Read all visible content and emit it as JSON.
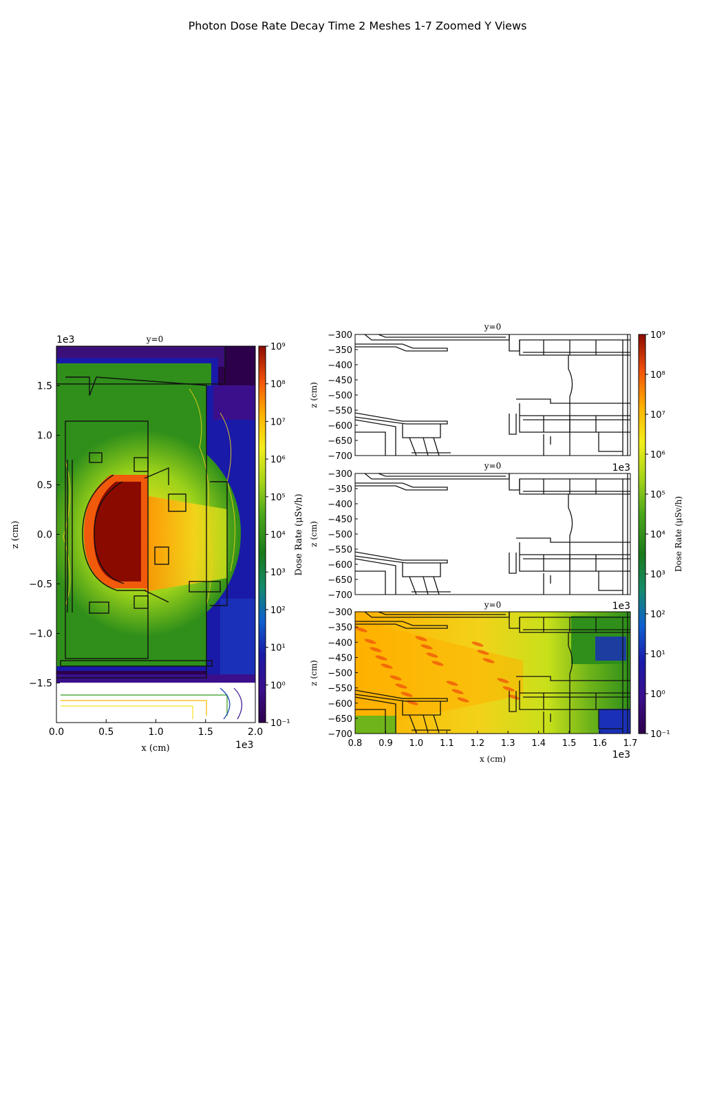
{
  "figure": {
    "title": "Photon Dose Rate Decay Time 2 Meshes 1-7 Zoomed Y Views"
  },
  "chart_data": [
    {
      "type": "heatmap",
      "panel": "left-full-view",
      "title": "y=0",
      "xlabel": "x  (cm)",
      "ylabel": "z  (cm)",
      "xlim": [
        0.0,
        2000.0
      ],
      "ylim": [
        -1900.0,
        1900.0
      ],
      "x_ticks": [
        "0.0",
        "0.5",
        "1.0",
        "1.5",
        "2.0"
      ],
      "x_tick_values": [
        0,
        500,
        1000,
        1500,
        2000
      ],
      "x_offset": "1e3",
      "y_ticks": [
        "1.5",
        "1.0",
        "0.5",
        "0.0",
        "−0.5",
        "−1.0",
        "−1.5"
      ],
      "y_tick_values": [
        1500,
        1000,
        500,
        0,
        -500,
        -1000,
        -1500
      ],
      "y_offset": "1e3",
      "colorbar": {
        "label": "Dose Rate  (μSv/h)",
        "scale": "log",
        "ticks": [
          "10⁹",
          "10⁸",
          "10⁷",
          "10⁶",
          "10⁵",
          "10⁴",
          "10³",
          "10²",
          "10¹",
          "10⁰",
          "10⁻¹"
        ],
        "range": [
          0.1,
          1000000000
        ]
      }
    },
    {
      "type": "heatmap",
      "panel": "right-top-zoom",
      "title": "y=0",
      "ylabel": "z  (cm)",
      "ylim": [
        -700,
        -300
      ],
      "y_ticks": [
        "−300",
        "−350",
        "−400",
        "−450",
        "−500",
        "−550",
        "−600",
        "−650",
        "−700"
      ],
      "xlim": [
        800,
        1700
      ],
      "x_offset": "1e3",
      "data_shown": "geometry outlines only"
    },
    {
      "type": "heatmap",
      "panel": "right-middle-zoom",
      "title": "y=0",
      "ylabel": "z  (cm)",
      "ylim": [
        -700,
        -300
      ],
      "y_ticks": [
        "−300",
        "−350",
        "−400",
        "−450",
        "−500",
        "−550",
        "−600",
        "−650",
        "−700"
      ],
      "xlim": [
        800,
        1700
      ],
      "x_offset": "1e3",
      "data_shown": "geometry outlines only"
    },
    {
      "type": "heatmap",
      "panel": "right-bottom-zoom",
      "title": "y=0",
      "xlabel": "x  (cm)",
      "ylabel": "z  (cm)",
      "ylim": [
        -700,
        -300
      ],
      "y_ticks": [
        "−300",
        "−350",
        "−400",
        "−450",
        "−500",
        "−550",
        "−600",
        "−650",
        "−700"
      ],
      "xlim": [
        800,
        1700
      ],
      "x_ticks": [
        "0.8",
        "0.9",
        "1.0",
        "1.1",
        "1.2",
        "1.3",
        "1.4",
        "1.5",
        "1.6",
        "1.7"
      ],
      "x_offset": "1e3",
      "colorbar": {
        "label": "Dose Rate  (μSv/h)",
        "scale": "log",
        "ticks": [
          "10⁹",
          "10⁸",
          "10⁷",
          "10⁶",
          "10⁵",
          "10⁴",
          "10³",
          "10²",
          "10¹",
          "10⁰",
          "10⁻¹"
        ],
        "range": [
          0.1,
          1000000000
        ]
      }
    }
  ],
  "colormap": [
    "#2d004b",
    "#3b0f8c",
    "#1a1aa8",
    "#0f5fd0",
    "#0b8f8f",
    "#1a7a1a",
    "#2f9a1a",
    "#7fbf1a",
    "#e6e61a",
    "#ffb400",
    "#ff6a00",
    "#d7190a",
    "#8b0a00"
  ]
}
